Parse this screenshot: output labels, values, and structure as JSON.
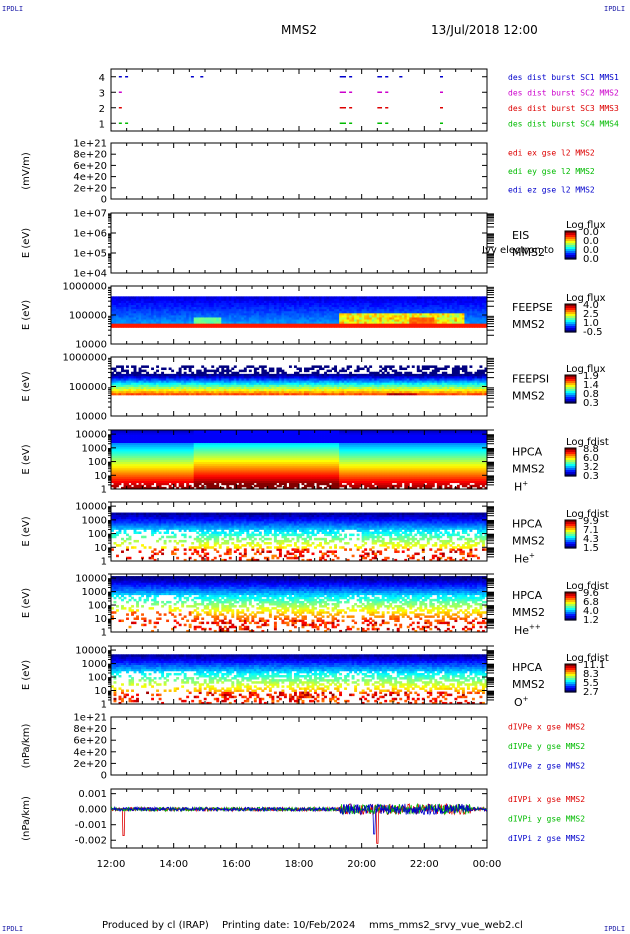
{
  "header": {
    "title": "MMS2",
    "datetime": "13/Jul/2018 12:00",
    "corner_mark": "IPDLI"
  },
  "footer": {
    "credit": "Produced by cl (IRAP)",
    "printing": "Printing date: 10/Feb/2024",
    "file": "mms_mms2_srvy_vue_web2.cl"
  },
  "x_axis": {
    "range_hours": [
      12,
      24
    ],
    "ticks": [
      12,
      14,
      16,
      18,
      20,
      22,
      24
    ],
    "tick_labels": [
      "12:00",
      "14:00",
      "16:00",
      "18:00",
      "20:00",
      "22:00",
      "00:00"
    ]
  },
  "colors": {
    "blue": "#0000cc",
    "magenta": "#cc00cc",
    "red": "#dd0000",
    "green": "#00bb00"
  },
  "chart_data": [
    {
      "type": "scatter",
      "id": "burst",
      "ylim": [
        0.5,
        4.5
      ],
      "yticks": [
        1,
        2,
        3,
        4
      ],
      "ytick_labels": [
        "1",
        "2",
        "3",
        "4"
      ],
      "series": [
        {
          "name": "des dist burst SC1 MMS1",
          "y": 4,
          "color": "#0000cc",
          "intervals": [
            [
              12.25,
              12.28
            ],
            [
              12.45,
              12.48
            ],
            [
              14.55,
              14.58
            ],
            [
              14.85,
              14.88
            ],
            [
              19.3,
              19.5
            ],
            [
              19.6,
              19.65
            ],
            [
              20.5,
              20.65
            ],
            [
              20.75,
              20.85
            ],
            [
              21.2,
              21.3
            ],
            [
              22.5,
              22.55
            ]
          ]
        },
        {
          "name": "des dist burst SC2 MMS2",
          "y": 3,
          "color": "#cc00cc",
          "intervals": [
            [
              12.25,
              12.28
            ],
            [
              19.3,
              19.5
            ],
            [
              19.6,
              19.65
            ],
            [
              20.5,
              20.65
            ],
            [
              20.75,
              20.85
            ],
            [
              22.5,
              22.55
            ]
          ]
        },
        {
          "name": "des dist burst SC3 MMS3",
          "y": 2,
          "color": "#dd0000",
          "intervals": [
            [
              12.25,
              12.28
            ],
            [
              19.3,
              19.5
            ],
            [
              19.6,
              19.65
            ],
            [
              20.5,
              20.65
            ],
            [
              20.75,
              20.85
            ],
            [
              22.5,
              22.55
            ]
          ]
        },
        {
          "name": "des dist burst SC4 MMS4",
          "y": 1,
          "color": "#00bb00",
          "intervals": [
            [
              12.25,
              12.28
            ],
            [
              12.45,
              12.48
            ],
            [
              19.3,
              19.5
            ],
            [
              19.6,
              19.65
            ],
            [
              20.5,
              20.65
            ],
            [
              20.75,
              20.85
            ],
            [
              22.5,
              22.55
            ]
          ]
        }
      ]
    },
    {
      "type": "line",
      "id": "edp",
      "ylabel": "(mV/m)",
      "ylim": [
        0,
        1e+21
      ],
      "yticks": [
        0,
        2e+20,
        4e+20,
        6e+20,
        8e+20,
        1e+21
      ],
      "ytick_labels": [
        "0",
        "2e+20",
        "4e+20",
        "6e+20",
        "8e+20",
        "1e+21"
      ],
      "zero_line": true,
      "series": [
        {
          "name": "edi ex gse l2 MMS2",
          "color": "#dd0000"
        },
        {
          "name": "edi ey gse l2 MMS2",
          "color": "#00bb00"
        },
        {
          "name": "edi ez gse l2 MMS2",
          "color": "#0000cc"
        }
      ]
    },
    {
      "type": "heatmap",
      "id": "eis",
      "ylabel": "E (eV)",
      "log_y": true,
      "ylim": [
        10000.0,
        10000000.0
      ],
      "yticks": [
        10000.0,
        100000.0,
        1000000.0,
        10000000.0
      ],
      "ytick_labels": [
        "1e+04",
        "1e+05",
        "1e+06",
        "1e+07"
      ],
      "instrument": [
        "EIS",
        "MMS2"
      ],
      "overlay_text": "t",
      "overlay_label": "Ivy electron to",
      "colorbar": {
        "label": "Log flux",
        "ticks": [
          "0.0",
          "0.0",
          "0.0",
          "0.0"
        ]
      },
      "empty": true
    },
    {
      "type": "heatmap",
      "id": "feepse",
      "ylabel": "E (eV)",
      "log_y": true,
      "ylim": [
        10000.0,
        1000000.0
      ],
      "yticks": [
        10000.0,
        100000.0,
        1000000.0
      ],
      "ytick_labels": [
        "10000",
        "100000",
        "1000000"
      ],
      "instrument": [
        "FEEPSE",
        "MMS2"
      ],
      "colorbar": {
        "label": "Log flux",
        "ticks": [
          "4.0",
          "2.5",
          "1.0",
          "-0.5"
        ]
      },
      "data_range": [
        35000.0,
        450000.0
      ]
    },
    {
      "type": "heatmap",
      "id": "feepsi",
      "ylabel": "E (eV)",
      "log_y": true,
      "ylim": [
        10000.0,
        1000000.0
      ],
      "yticks": [
        10000.0,
        100000.0,
        1000000.0
      ],
      "ytick_labels": [
        "10000",
        "100000",
        "1000000"
      ],
      "instrument": [
        "FEEPSI",
        "MMS2"
      ],
      "colorbar": {
        "label": "Log flux",
        "ticks": [
          "1.9",
          "1.4",
          "0.8",
          "0.3"
        ]
      },
      "data_range": [
        50000.0,
        500000.0
      ]
    },
    {
      "type": "heatmap",
      "id": "hpca_h",
      "ylabel": "E (eV)",
      "log_y": true,
      "ylim": [
        1,
        20000
      ],
      "yticks": [
        1,
        10,
        100,
        1000,
        10000
      ],
      "ytick_labels": [
        "1",
        "10",
        "100",
        "1000",
        "10000"
      ],
      "instrument": [
        "HPCA",
        "MMS2"
      ],
      "species": {
        "base": "H",
        "sup": "+"
      },
      "colorbar": {
        "label": "Log fdist",
        "ticks": [
          "8.8",
          "6.0",
          "3.2",
          "0.3"
        ]
      }
    },
    {
      "type": "heatmap",
      "id": "hpca_he",
      "ylabel": "E (eV)",
      "log_y": true,
      "ylim": [
        1,
        20000
      ],
      "yticks": [
        1,
        10,
        100,
        1000,
        10000
      ],
      "ytick_labels": [
        "1",
        "10",
        "100",
        "1000",
        "10000"
      ],
      "instrument": [
        "HPCA",
        "MMS2"
      ],
      "species": {
        "base": "He",
        "sup": "+"
      },
      "colorbar": {
        "label": "Log fdist",
        "ticks": [
          "9.9",
          "7.1",
          "4.3",
          "1.5"
        ]
      }
    },
    {
      "type": "heatmap",
      "id": "hpca_hepp",
      "ylabel": "E (eV)",
      "log_y": true,
      "ylim": [
        1,
        20000
      ],
      "yticks": [
        1,
        10,
        100,
        1000,
        10000
      ],
      "ytick_labels": [
        "1",
        "10",
        "100",
        "1000",
        "10000"
      ],
      "instrument": [
        "HPCA",
        "MMS2"
      ],
      "species": {
        "base": "He",
        "sup": "++"
      },
      "colorbar": {
        "label": "Log fdist",
        "ticks": [
          "9.6",
          "6.8",
          "4.0",
          "1.2"
        ]
      }
    },
    {
      "type": "heatmap",
      "id": "hpca_o",
      "ylabel": "E (eV)",
      "log_y": true,
      "ylim": [
        1,
        20000
      ],
      "yticks": [
        1,
        10,
        100,
        1000,
        10000
      ],
      "ytick_labels": [
        "1",
        "10",
        "100",
        "1000",
        "10000"
      ],
      "instrument": [
        "HPCA",
        "MMS2"
      ],
      "species": {
        "base": "O",
        "sup": "+"
      },
      "colorbar": {
        "label": "Log fdist",
        "ticks": [
          "11.1",
          "8.3",
          "5.5",
          "2.7"
        ]
      }
    },
    {
      "type": "line",
      "id": "dpe",
      "ylabel": "(nPa/km)",
      "ylim": [
        0,
        1e+21
      ],
      "yticks": [
        0,
        2e+20,
        4e+20,
        6e+20,
        8e+20,
        1e+21
      ],
      "ytick_labels": [
        "0",
        "2e+20",
        "4e+20",
        "6e+20",
        "8e+20",
        "1e+21"
      ],
      "zero_line": true,
      "series": [
        {
          "name": "dIVPe x gse MMS2",
          "color": "#dd0000"
        },
        {
          "name": "dIVPe y gse MMS2",
          "color": "#00bb00"
        },
        {
          "name": "dIVPe z gse MMS2",
          "color": "#0000cc"
        }
      ]
    },
    {
      "type": "line",
      "id": "dpi",
      "ylabel": "(nPa/km)",
      "ylim": [
        -0.0025,
        0.0013
      ],
      "yticks": [
        -0.002,
        -0.001,
        0,
        0.001
      ],
      "ytick_labels": [
        "-0.002",
        "-0.001",
        "0.000",
        "0.001"
      ],
      "zero_line": true,
      "series": [
        {
          "name": "dIVPi x gse MMS2",
          "color": "#dd0000"
        },
        {
          "name": "dIVPi y gse MMS2",
          "color": "#00bb00"
        },
        {
          "name": "dIVPi z gse MMS2",
          "color": "#0000cc"
        }
      ]
    }
  ]
}
